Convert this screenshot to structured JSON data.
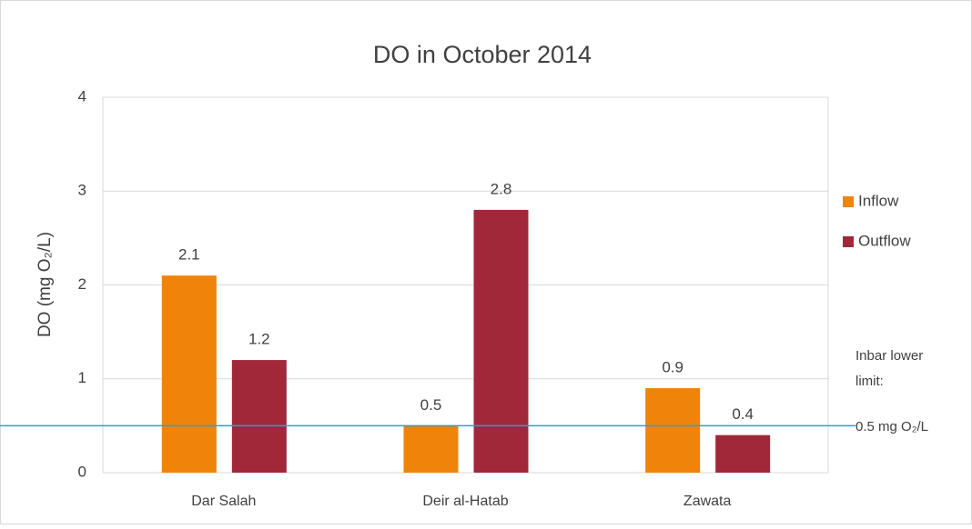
{
  "chart_data": {
    "type": "bar",
    "title": "DO in October 2014",
    "y_axis_label": "DO (mg O₂/L)",
    "categories": [
      "Dar Salah",
      "Deir al-Hatab",
      "Zawata"
    ],
    "series": [
      {
        "name": "Inflow",
        "color": "#f0830a",
        "values": [
          2.1,
          0.5,
          0.9
        ]
      },
      {
        "name": "Outflow",
        "color": "#a02838",
        "values": [
          1.2,
          2.8,
          0.4
        ]
      }
    ],
    "ylim": [
      0,
      4
    ],
    "yticks": [
      0,
      1,
      2,
      3,
      4
    ],
    "grid": true,
    "legend": "right",
    "reference_line": {
      "value": 0.5,
      "color": "#2a9fd8"
    },
    "annotation": [
      "Inbar lower",
      "limit:",
      "0.5 mg O₂/L"
    ]
  }
}
